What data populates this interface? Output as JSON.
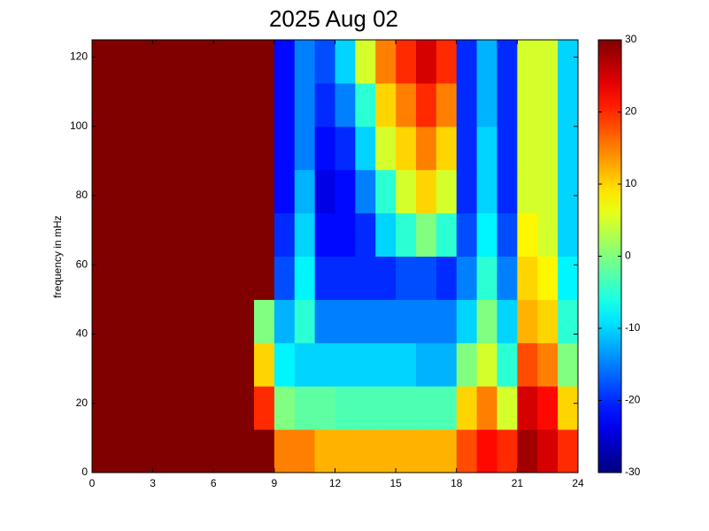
{
  "chart_data": {
    "type": "heatmap",
    "title": "2025 Aug 02",
    "y_label": "frequency in mHz",
    "x": [
      0,
      1,
      2,
      3,
      4,
      5,
      6,
      7,
      8,
      9,
      10,
      11,
      12,
      13,
      14,
      15,
      16,
      17,
      18,
      19,
      20,
      21,
      22,
      23,
      24
    ],
    "y": [
      0,
      12.5,
      25,
      37.5,
      50,
      62.5,
      75,
      87.5,
      100,
      112.5,
      125
    ],
    "z": [
      [
        30,
        30,
        30,
        30,
        30,
        30,
        30,
        30,
        30,
        15,
        15,
        12,
        12,
        12,
        12,
        12,
        12,
        12,
        18,
        22,
        20,
        28,
        25,
        20
      ],
      [
        30,
        30,
        30,
        30,
        30,
        30,
        30,
        30,
        20,
        0,
        -2,
        -2,
        -3,
        -3,
        -3,
        -3,
        -3,
        -3,
        10,
        15,
        5,
        25,
        22,
        10
      ],
      [
        30,
        30,
        30,
        30,
        30,
        30,
        30,
        30,
        10,
        -8,
        -10,
        -10,
        -10,
        -10,
        -10,
        -10,
        -12,
        -12,
        0,
        5,
        -5,
        18,
        15,
        0
      ],
      [
        30,
        30,
        30,
        30,
        30,
        30,
        30,
        30,
        0,
        -12,
        -5,
        -15,
        -15,
        -15,
        -15,
        -15,
        -15,
        -15,
        -10,
        0,
        -10,
        12,
        10,
        -5
      ],
      [
        30,
        30,
        30,
        30,
        30,
        30,
        30,
        30,
        30,
        -18,
        -8,
        -20,
        -20,
        -20,
        -20,
        -18,
        -18,
        -20,
        -15,
        -5,
        -15,
        10,
        8,
        -8
      ],
      [
        30,
        30,
        30,
        30,
        30,
        30,
        30,
        30,
        30,
        -20,
        -10,
        -22,
        -22,
        -20,
        -10,
        -5,
        0,
        -5,
        -18,
        -8,
        -18,
        8,
        5,
        -10
      ],
      [
        30,
        30,
        30,
        30,
        30,
        30,
        30,
        30,
        30,
        -22,
        -12,
        -24,
        -22,
        -15,
        -5,
        5,
        10,
        5,
        -20,
        -10,
        -20,
        5,
        5,
        -10
      ],
      [
        30,
        30,
        30,
        30,
        30,
        30,
        30,
        30,
        30,
        -22,
        -15,
        -22,
        -20,
        -10,
        5,
        10,
        15,
        10,
        -20,
        -10,
        -20,
        5,
        5,
        -10
      ],
      [
        30,
        30,
        30,
        30,
        30,
        30,
        30,
        30,
        30,
        -22,
        -15,
        -20,
        -15,
        -5,
        10,
        15,
        20,
        15,
        -20,
        -12,
        -20,
        5,
        5,
        -10
      ],
      [
        30,
        30,
        30,
        30,
        30,
        30,
        30,
        30,
        30,
        -22,
        -15,
        -18,
        -10,
        5,
        15,
        20,
        25,
        20,
        -20,
        -12,
        -20,
        5,
        5,
        -10
      ]
    ],
    "colormap": "jet",
    "xlim": [
      0,
      24
    ],
    "xticks": [
      0,
      3,
      6,
      9,
      12,
      15,
      18,
      21,
      24
    ],
    "ylim": [
      0,
      125
    ],
    "yticks": [
      0,
      20,
      40,
      60,
      80,
      100,
      120
    ],
    "clim": [
      -30,
      30
    ],
    "cticks": [
      -30,
      -20,
      -10,
      0,
      10,
      20,
      30
    ]
  }
}
